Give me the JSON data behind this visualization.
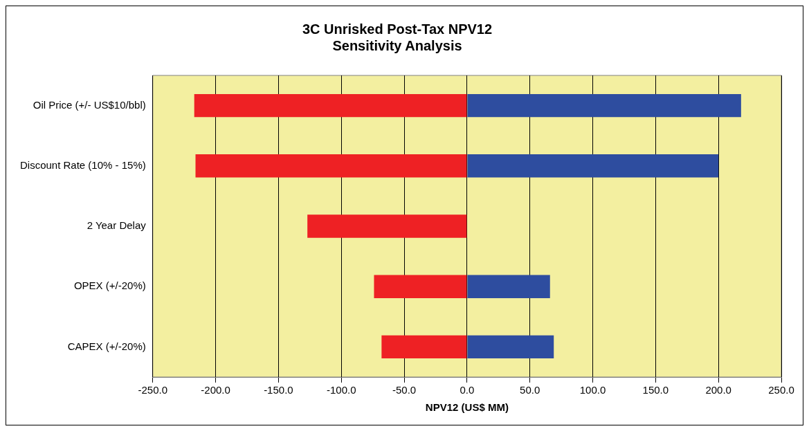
{
  "chart_data": {
    "type": "bar",
    "orientation": "horizontal",
    "stacked": true,
    "title": "3C Unrisked Post-Tax NPV12\nSensitivity Analysis",
    "xlabel": "NPV12 (US$ MM)",
    "categories": [
      "Oil Price (+/- US$10/bbl)",
      "Discount Rate (10% - 15%)",
      "2 Year Delay",
      "OPEX (+/-20%)",
      "CAPEX (+/-20%)"
    ],
    "series": [
      {
        "color": "#ee2124",
        "values": [
          -217,
          -216,
          -127,
          -74,
          -68
        ]
      },
      {
        "color": "#2e4d9f",
        "values": [
          218,
          200,
          null,
          66,
          69
        ]
      }
    ],
    "xlim": [
      -250,
      250
    ],
    "xticks": [
      {
        "value": -250,
        "label": "-250.0"
      },
      {
        "value": -200,
        "label": "-200.0"
      },
      {
        "value": -150,
        "label": "-150.0"
      },
      {
        "value": -100,
        "label": "-100.0"
      },
      {
        "value": -50,
        "label": "-50.0"
      },
      {
        "value": 0,
        "label": "0.0"
      },
      {
        "value": 50,
        "label": "50.0"
      },
      {
        "value": 100,
        "label": "100.0"
      },
      {
        "value": 150,
        "label": "150.0"
      },
      {
        "value": 200,
        "label": "200.0"
      },
      {
        "value": 250,
        "label": "250.0"
      }
    ],
    "grid": "x",
    "legend": false
  }
}
